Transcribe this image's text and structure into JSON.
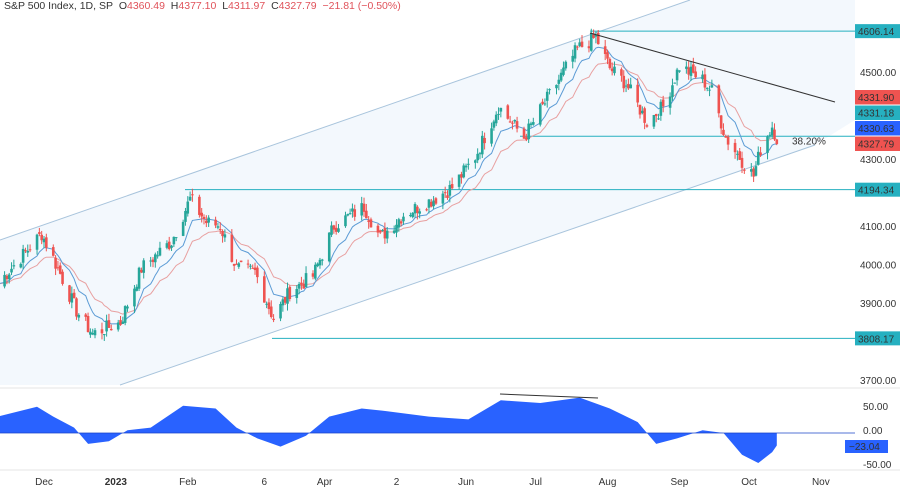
{
  "header": {
    "symbol": "S&P 500 Index, 1D, SP",
    "o_label": "O",
    "o": "4360.49",
    "h_label": "H",
    "h": "4377.10",
    "l_label": "L",
    "l": "4311.97",
    "c_label": "C",
    "c": "4327.79",
    "change": "−21.81 (−0.50%)"
  },
  "colors": {
    "up": "#26a69a",
    "down": "#ef5350",
    "ma_fast": "#5b9bd5",
    "ma_slow": "#e8a0a0",
    "levels": "#26b0c0",
    "oscillator": "#2962ff",
    "channel": "#a8c4dc",
    "trendline": "#333333"
  },
  "chart_data": [
    {
      "type": "candlestick",
      "title": "S&P 500 Index, 1D, SP",
      "ylim": [
        3700,
        4650
      ],
      "y_ticks": [
        "4500.00",
        "4300.00",
        "4100.00",
        "4000.00",
        "3900.00",
        "3700.00"
      ],
      "x_ticks": [
        "Dec",
        "2023",
        "Feb",
        "6",
        "Apr",
        "2",
        "Jun",
        "Jul",
        "Aug",
        "Sep",
        "Oct",
        "Nov"
      ],
      "price_path": [
        [
          "2022-11-11",
          3950
        ],
        [
          "2022-11-30",
          4080
        ],
        [
          "2022-12-07",
          3990
        ],
        [
          "2022-12-15",
          3880
        ],
        [
          "2022-12-22",
          3820
        ],
        [
          "2023-01-03",
          3850
        ],
        [
          "2023-01-12",
          3990
        ],
        [
          "2023-01-25",
          4060
        ],
        [
          "2023-02-02",
          4170
        ],
        [
          "2023-02-09",
          4110
        ],
        [
          "2023-02-15",
          4100
        ],
        [
          "2023-02-22",
          3990
        ],
        [
          "2023-03-02",
          3980
        ],
        [
          "2023-03-10",
          3860
        ],
        [
          "2023-03-17",
          3930
        ],
        [
          "2023-03-27",
          3970
        ],
        [
          "2023-04-05",
          4100
        ],
        [
          "2023-04-18",
          4150
        ],
        [
          "2023-04-25",
          4070
        ],
        [
          "2023-05-05",
          4130
        ],
        [
          "2023-05-18",
          4170
        ],
        [
          "2023-05-26",
          4200
        ],
        [
          "2023-06-05",
          4280
        ],
        [
          "2023-06-15",
          4410
        ],
        [
          "2023-06-26",
          4330
        ],
        [
          "2023-07-06",
          4430
        ],
        [
          "2023-07-19",
          4560
        ],
        [
          "2023-07-27",
          4590
        ],
        [
          "2023-08-02",
          4510
        ],
        [
          "2023-08-09",
          4470
        ],
        [
          "2023-08-18",
          4370
        ],
        [
          "2023-08-25",
          4410
        ],
        [
          "2023-09-01",
          4515
        ],
        [
          "2023-09-11",
          4480
        ],
        [
          "2023-09-15",
          4450
        ],
        [
          "2023-09-21",
          4330
        ],
        [
          "2023-09-28",
          4270
        ],
        [
          "2023-10-03",
          4230
        ],
        [
          "2023-10-06",
          4300
        ],
        [
          "2023-10-11",
          4360
        ],
        [
          "2023-10-13",
          4328
        ]
      ],
      "levels": [
        {
          "label": "4606.14",
          "value": 4606.14
        },
        {
          "label": "4194.34",
          "value": 4194.34
        },
        {
          "label": "3808.17",
          "value": 3808.17
        }
      ],
      "fib_label": "38.20%",
      "fib_value": 4333,
      "last_labels": [
        {
          "label": "4331.90",
          "color": "#ef5350"
        },
        {
          "label": "4331.18",
          "color": "#26b0c0"
        },
        {
          "label": "4330.63",
          "color": "#2962ff"
        },
        {
          "label": "4327.79",
          "color": "#ef5350"
        }
      ]
    },
    {
      "type": "area",
      "ylim": [
        -60,
        70
      ],
      "y_ticks": [
        "50.00",
        "0.00",
        "-50.00"
      ],
      "last_label": "−23.04",
      "values": [
        [
          "2022-11-11",
          30
        ],
        [
          "2022-11-28",
          48
        ],
        [
          "2022-12-05",
          30
        ],
        [
          "2022-12-14",
          10
        ],
        [
          "2022-12-20",
          -20
        ],
        [
          "2022-12-29",
          -15
        ],
        [
          "2023-01-06",
          5
        ],
        [
          "2023-01-16",
          10
        ],
        [
          "2023-01-30",
          50
        ],
        [
          "2023-02-13",
          45
        ],
        [
          "2023-02-22",
          10
        ],
        [
          "2023-03-03",
          -10
        ],
        [
          "2023-03-13",
          -25
        ],
        [
          "2023-03-24",
          -5
        ],
        [
          "2023-04-03",
          30
        ],
        [
          "2023-04-17",
          45
        ],
        [
          "2023-04-28",
          40
        ],
        [
          "2023-05-16",
          30
        ],
        [
          "2023-06-02",
          25
        ],
        [
          "2023-06-16",
          60
        ],
        [
          "2023-07-03",
          55
        ],
        [
          "2023-07-20",
          65
        ],
        [
          "2023-08-02",
          45
        ],
        [
          "2023-08-14",
          20
        ],
        [
          "2023-08-22",
          -20
        ],
        [
          "2023-08-31",
          -10
        ],
        [
          "2023-09-11",
          5
        ],
        [
          "2023-09-20",
          0
        ],
        [
          "2023-09-28",
          -40
        ],
        [
          "2023-10-05",
          -55
        ],
        [
          "2023-10-11",
          -35
        ],
        [
          "2023-10-13",
          -23
        ]
      ]
    }
  ]
}
